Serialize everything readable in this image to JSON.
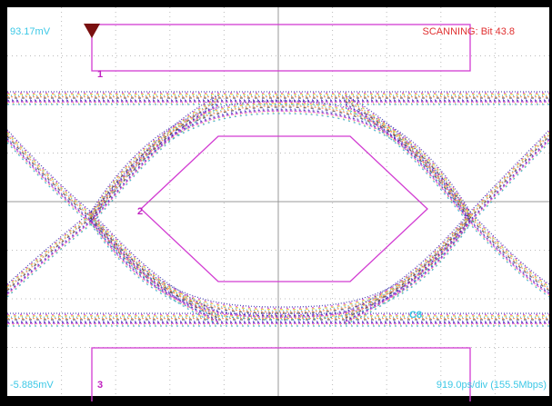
{
  "readouts": {
    "top_left": "93.17mV",
    "top_right": "SCANNING: Bit 43.8",
    "bottom_left": "-5.885mV",
    "bottom_right": "919.0ps/div (155.5Mbps)",
    "channel": "C8"
  },
  "masks": [
    {
      "label": "1"
    },
    {
      "label": "2"
    },
    {
      "label": "3"
    }
  ]
}
